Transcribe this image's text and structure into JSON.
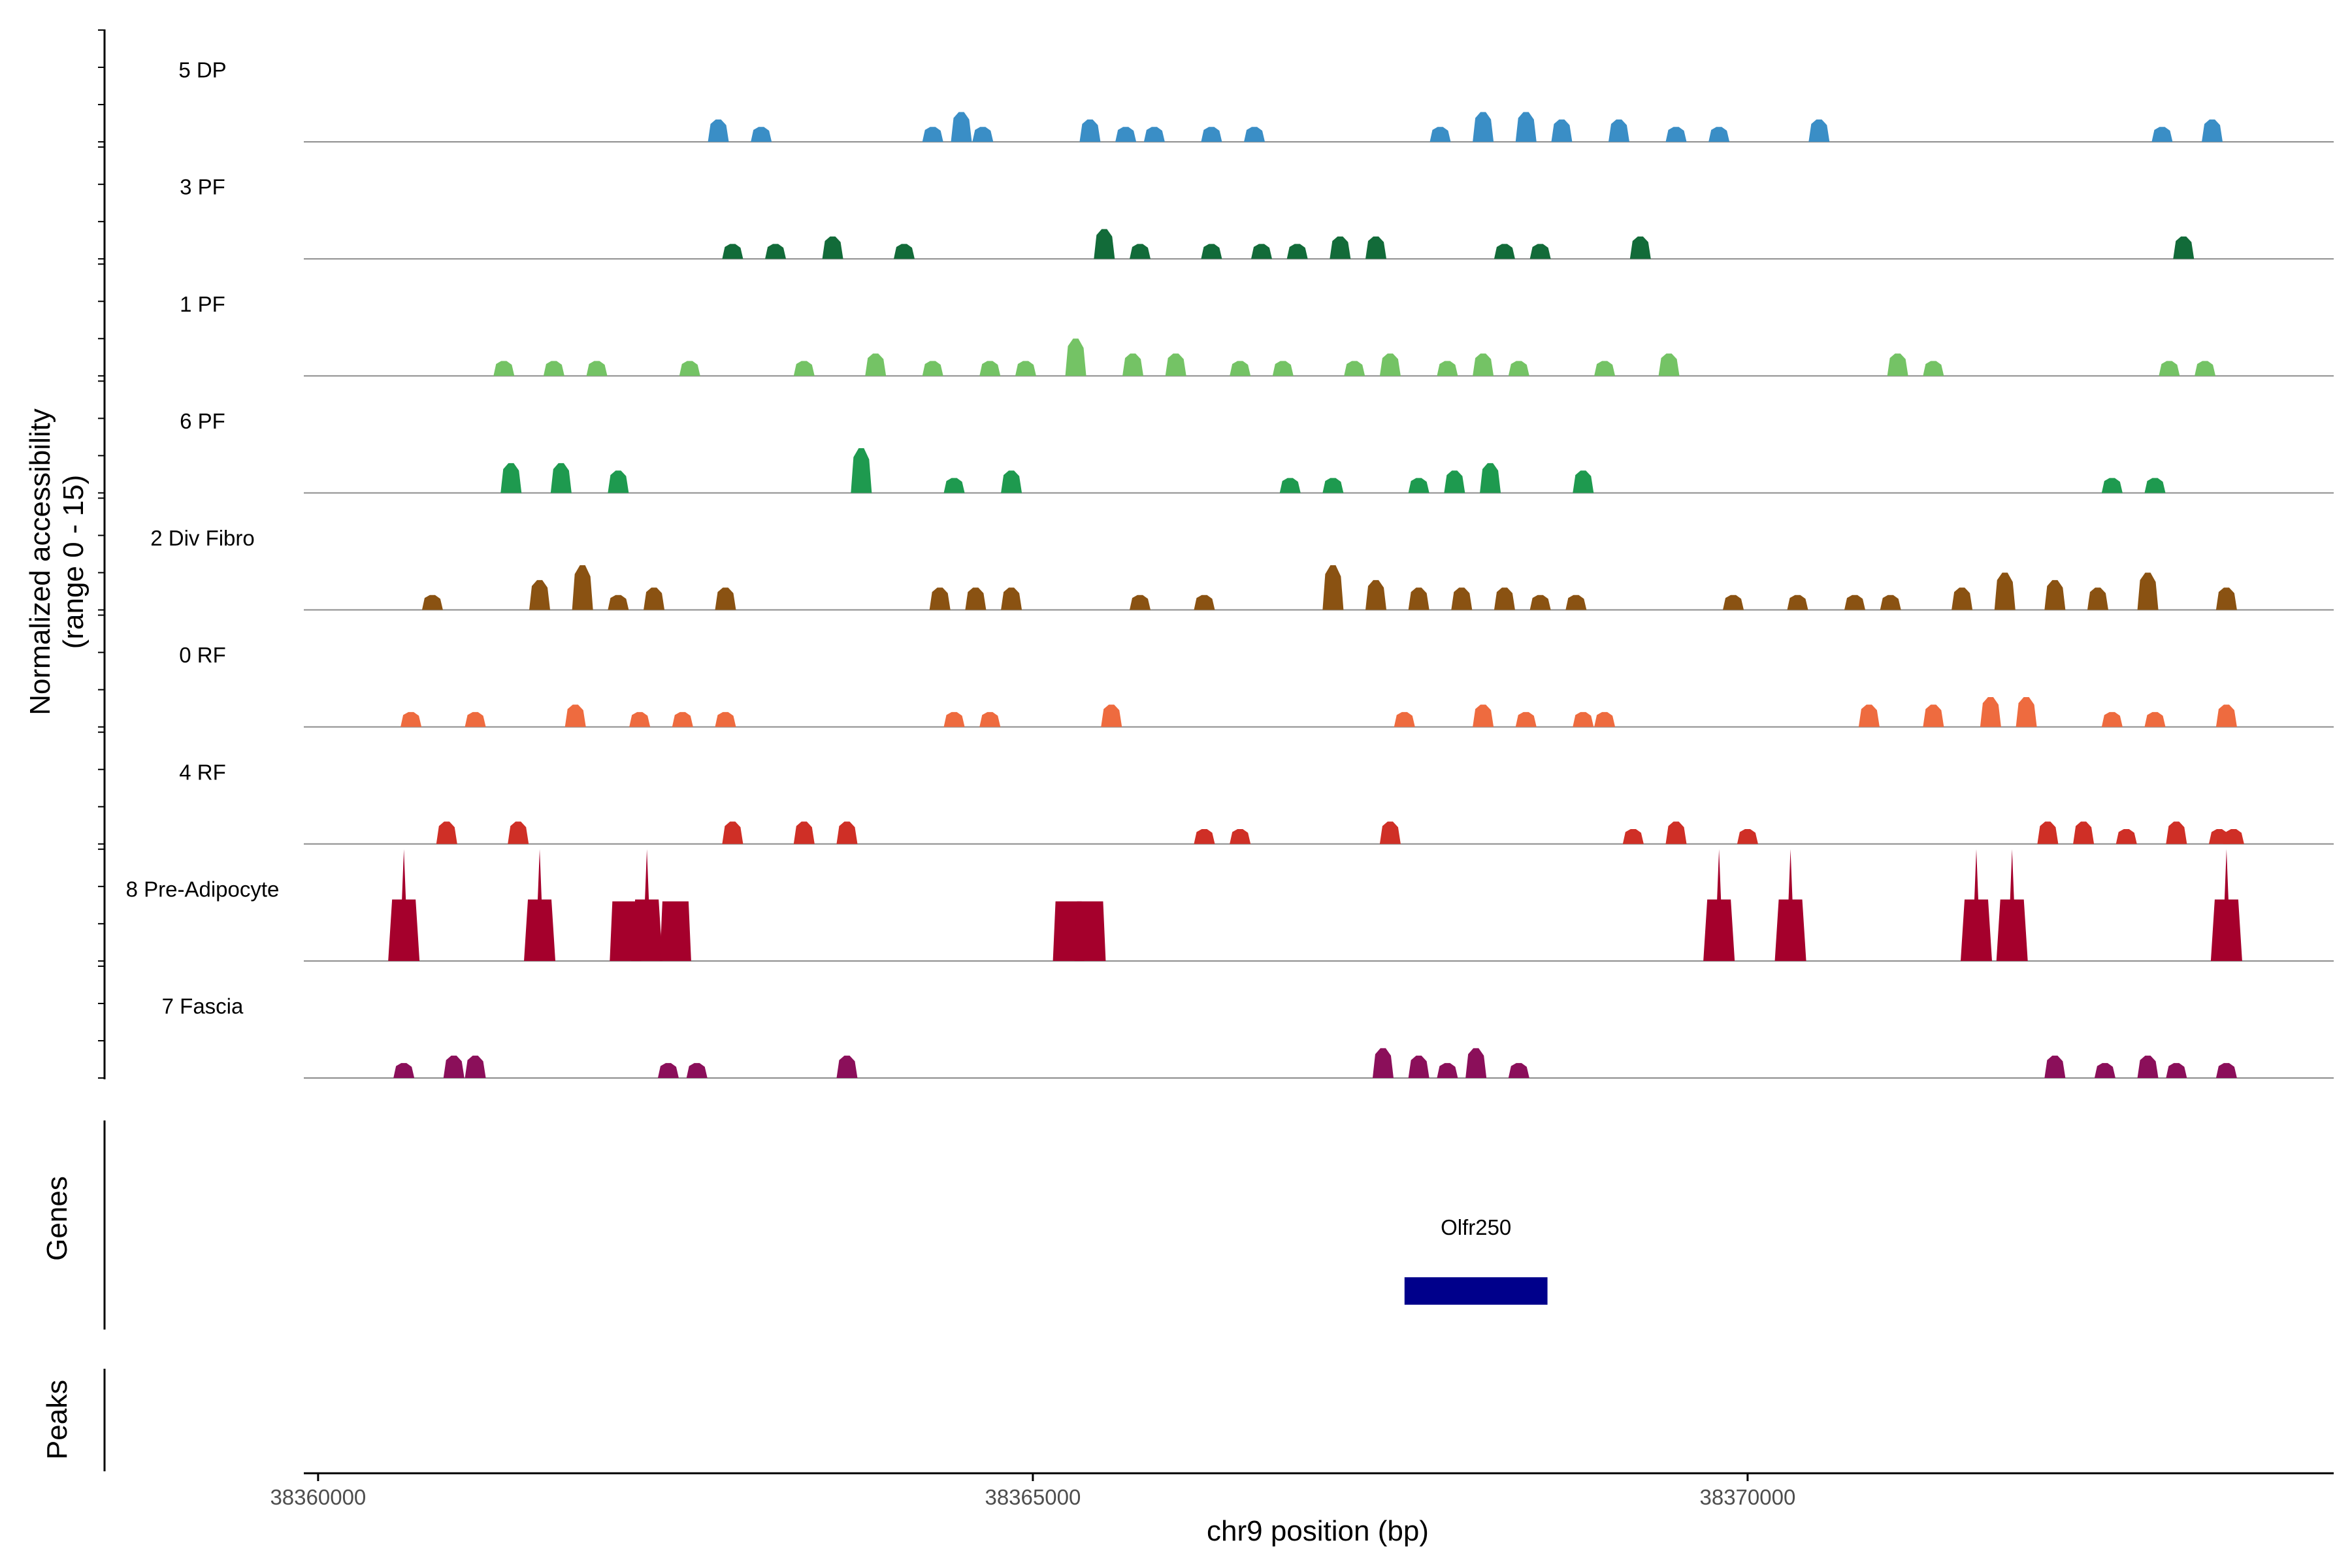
{
  "chart_data": {
    "type": "area",
    "title": "",
    "y_axis_title": "Normalized accessibility\n(range 0 - 15)",
    "y_range": [
      0,
      15
    ],
    "x_axis_title": "chr9 position (bp)",
    "x_range": [
      38359900,
      38374100
    ],
    "x_ticks": [
      {
        "value": 38360000,
        "label": "38360000"
      },
      {
        "value": 38365000,
        "label": "38365000"
      },
      {
        "value": 38370000,
        "label": "38370000"
      }
    ],
    "tracks": [
      {
        "name": "5 DP",
        "color": "#3a8ec6",
        "peaks": [
          [
            38362800,
            3
          ],
          [
            38363100,
            2
          ],
          [
            38364300,
            2
          ],
          [
            38364500,
            4
          ],
          [
            38364650,
            2
          ],
          [
            38365400,
            3
          ],
          [
            38365650,
            2
          ],
          [
            38365850,
            2
          ],
          [
            38366250,
            2
          ],
          [
            38366550,
            2
          ],
          [
            38367850,
            2
          ],
          [
            38368150,
            4
          ],
          [
            38368450,
            4
          ],
          [
            38368700,
            3
          ],
          [
            38369100,
            3
          ],
          [
            38369500,
            2
          ],
          [
            38369800,
            2
          ],
          [
            38370500,
            3
          ],
          [
            38372900,
            2
          ],
          [
            38373250,
            3
          ]
        ]
      },
      {
        "name": "3 PF",
        "color": "#126b39",
        "peaks": [
          [
            38362900,
            2
          ],
          [
            38363200,
            2
          ],
          [
            38363600,
            3
          ],
          [
            38364100,
            2
          ],
          [
            38365500,
            4
          ],
          [
            38365750,
            2
          ],
          [
            38366250,
            2
          ],
          [
            38366600,
            2
          ],
          [
            38366850,
            2
          ],
          [
            38367150,
            3
          ],
          [
            38367400,
            3
          ],
          [
            38368300,
            2
          ],
          [
            38368550,
            2
          ],
          [
            38369250,
            3
          ],
          [
            38373050,
            3
          ]
        ]
      },
      {
        "name": "1 PF",
        "color": "#74c365",
        "peaks": [
          [
            38361300,
            2
          ],
          [
            38361650,
            2
          ],
          [
            38361950,
            2
          ],
          [
            38362600,
            2
          ],
          [
            38363400,
            2
          ],
          [
            38363900,
            3
          ],
          [
            38364300,
            2
          ],
          [
            38364700,
            2
          ],
          [
            38364950,
            2
          ],
          [
            38365300,
            5
          ],
          [
            38365700,
            3
          ],
          [
            38366000,
            3
          ],
          [
            38366450,
            2
          ],
          [
            38366750,
            2
          ],
          [
            38367250,
            2
          ],
          [
            38367500,
            3
          ],
          [
            38367900,
            2
          ],
          [
            38368150,
            3
          ],
          [
            38368400,
            2
          ],
          [
            38369000,
            2
          ],
          [
            38369450,
            3
          ],
          [
            38371050,
            3
          ],
          [
            38371300,
            2
          ],
          [
            38372950,
            2
          ],
          [
            38373200,
            2
          ]
        ]
      },
      {
        "name": "6 PF",
        "color": "#1e9a4f",
        "peaks": [
          [
            38361350,
            4
          ],
          [
            38361700,
            4
          ],
          [
            38362100,
            3
          ],
          [
            38363800,
            6
          ],
          [
            38364450,
            2
          ],
          [
            38364850,
            3
          ],
          [
            38366800,
            2
          ],
          [
            38367100,
            2
          ],
          [
            38367700,
            2
          ],
          [
            38367950,
            3
          ],
          [
            38368200,
            4
          ],
          [
            38368850,
            3
          ],
          [
            38372550,
            2
          ],
          [
            38372850,
            2
          ]
        ]
      },
      {
        "name": "2 Div Fibro",
        "color": "#8a5212",
        "peaks": [
          [
            38360800,
            2
          ],
          [
            38361550,
            4
          ],
          [
            38361850,
            6
          ],
          [
            38362100,
            2
          ],
          [
            38362350,
            3
          ],
          [
            38362850,
            3
          ],
          [
            38364350,
            3
          ],
          [
            38364600,
            3
          ],
          [
            38364850,
            3
          ],
          [
            38365750,
            2
          ],
          [
            38366200,
            2
          ],
          [
            38367100,
            6
          ],
          [
            38367400,
            4
          ],
          [
            38367700,
            3
          ],
          [
            38368000,
            3
          ],
          [
            38368300,
            3
          ],
          [
            38368550,
            2
          ],
          [
            38368800,
            2
          ],
          [
            38369900,
            2
          ],
          [
            38370350,
            2
          ],
          [
            38370750,
            2
          ],
          [
            38371000,
            2
          ],
          [
            38371500,
            3
          ],
          [
            38371800,
            5
          ],
          [
            38372150,
            4
          ],
          [
            38372450,
            3
          ],
          [
            38372800,
            5
          ],
          [
            38373350,
            3
          ]
        ]
      },
      {
        "name": "0 RF",
        "color": "#ee6b3f",
        "peaks": [
          [
            38360650,
            2
          ],
          [
            38361100,
            2
          ],
          [
            38361800,
            3
          ],
          [
            38362250,
            2
          ],
          [
            38362550,
            2
          ],
          [
            38362850,
            2
          ],
          [
            38364450,
            2
          ],
          [
            38364700,
            2
          ],
          [
            38365550,
            3
          ],
          [
            38367600,
            2
          ],
          [
            38368150,
            3
          ],
          [
            38368450,
            2
          ],
          [
            38368850,
            2
          ],
          [
            38369000,
            2
          ],
          [
            38370850,
            3
          ],
          [
            38371300,
            3
          ],
          [
            38371700,
            4
          ],
          [
            38371950,
            4
          ],
          [
            38372550,
            2
          ],
          [
            38372850,
            2
          ],
          [
            38373350,
            3
          ]
        ]
      },
      {
        "name": "4 RF",
        "color": "#cf2f26",
        "peaks": [
          [
            38360900,
            3
          ],
          [
            38361400,
            3
          ],
          [
            38362900,
            3
          ],
          [
            38363400,
            3
          ],
          [
            38363700,
            3
          ],
          [
            38366200,
            2
          ],
          [
            38366450,
            2
          ],
          [
            38367500,
            3
          ],
          [
            38369200,
            2
          ],
          [
            38369500,
            3
          ],
          [
            38370000,
            2
          ],
          [
            38372100,
            3
          ],
          [
            38372350,
            3
          ],
          [
            38372650,
            2
          ],
          [
            38373000,
            3
          ],
          [
            38373300,
            2
          ],
          [
            38373400,
            2
          ]
        ]
      },
      {
        "name": "8 Pre-Adipocyte",
        "color": "#a5002c",
        "peaks": [
          [
            38360600,
            15
          ],
          [
            38361550,
            15
          ],
          [
            38362150,
            8
          ],
          [
            38362300,
            15
          ],
          [
            38362500,
            8
          ],
          [
            38365250,
            8
          ],
          [
            38365400,
            8
          ],
          [
            38369800,
            15
          ],
          [
            38370300,
            15
          ],
          [
            38371600,
            15
          ],
          [
            38371850,
            15
          ],
          [
            38373350,
            15
          ]
        ]
      },
      {
        "name": "7 Fascia",
        "color": "#8b0f5a",
        "peaks": [
          [
            38360600,
            2
          ],
          [
            38360950,
            3
          ],
          [
            38361100,
            3
          ],
          [
            38362450,
            2
          ],
          [
            38362650,
            2
          ],
          [
            38363700,
            3
          ],
          [
            38367450,
            4
          ],
          [
            38367700,
            3
          ],
          [
            38367900,
            2
          ],
          [
            38368100,
            4
          ],
          [
            38368400,
            2
          ],
          [
            38372150,
            3
          ],
          [
            38372500,
            2
          ],
          [
            38372800,
            3
          ],
          [
            38373000,
            2
          ],
          [
            38373350,
            2
          ]
        ]
      }
    ],
    "genes_panel": {
      "title": "Genes",
      "genes": [
        {
          "name": "Olfr250",
          "start": 38367600,
          "end": 38368600,
          "color": "#00008b"
        }
      ]
    },
    "peaks_panel": {
      "title": "Peaks"
    },
    "grid": false,
    "legend": "none"
  }
}
